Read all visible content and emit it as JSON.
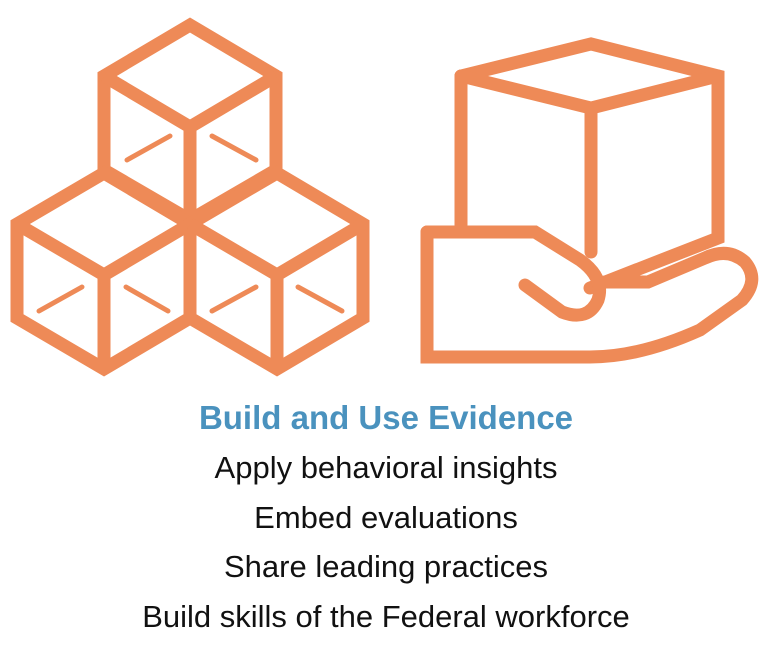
{
  "colors": {
    "icon_orange": "#EE8A57",
    "heading_blue": "#4A92BE",
    "text": "#111111"
  },
  "icons": [
    {
      "name": "stacked-cubes-icon"
    },
    {
      "name": "hand-holding-box-icon"
    }
  ],
  "heading": "Build and Use Evidence",
  "lines": [
    "Apply behavioral insights",
    "Embed evaluations",
    "Share leading practices",
    "Build skills of the Federal workforce"
  ]
}
